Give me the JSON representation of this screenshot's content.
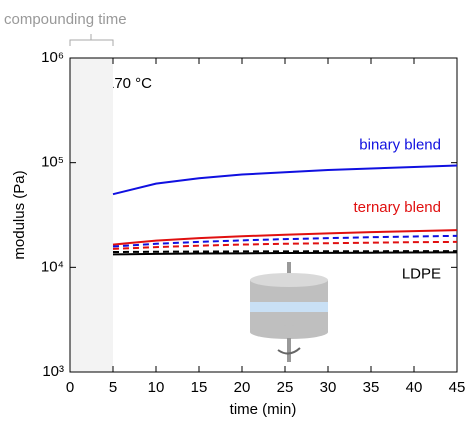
{
  "chart_data": {
    "type": "line",
    "annotations": {
      "bracket": "compounding time",
      "temperature": "T = 170 °C"
    },
    "xlabel": "time (min)",
    "ylabel": "modulus (Pa)",
    "x": [
      5,
      10,
      15,
      20,
      25,
      30,
      35,
      40,
      45
    ],
    "series": [
      {
        "name": "binary blend",
        "color": "#1010e0",
        "dash": false,
        "values": [
          50000,
          63000,
          71000,
          77000,
          81000,
          85000,
          88000,
          91000,
          94000
        ]
      },
      {
        "name": "ternary blend",
        "color": "#e01010",
        "dash": false,
        "values": [
          16500,
          18000,
          19000,
          19800,
          20500,
          21100,
          21700,
          22200,
          22700
        ]
      },
      {
        "color": "#1010e0",
        "dash": true,
        "values": [
          15800,
          16800,
          17500,
          18100,
          18600,
          19000,
          19400,
          19700,
          20000
        ]
      },
      {
        "color": "#e01010",
        "dash": true,
        "values": [
          15000,
          15600,
          16100,
          16500,
          16800,
          17000,
          17200,
          17400,
          17500
        ]
      },
      {
        "color": "#000000",
        "dash": true,
        "values": [
          14000,
          14100,
          14150,
          14200,
          14200,
          14250,
          14250,
          14300,
          14300
        ]
      },
      {
        "name": "LDPE",
        "color": "#000000",
        "dash": false,
        "values": [
          13300,
          13450,
          13550,
          13600,
          13700,
          13750,
          13800,
          13850,
          13900
        ]
      }
    ],
    "shaded_xrange": [
      0,
      5
    ],
    "xlim": [
      0,
      45
    ],
    "xticks": [
      0,
      5,
      10,
      15,
      20,
      25,
      30,
      35,
      40,
      45
    ],
    "ylim": [
      1000,
      1000000
    ],
    "log_y": true,
    "yticks": [
      {
        "value": 1000,
        "label": "10³"
      },
      {
        "value": 10000,
        "label": "10⁴"
      },
      {
        "value": 100000,
        "label": "10⁵"
      },
      {
        "value": 1000000,
        "label": "10⁶"
      }
    ]
  }
}
